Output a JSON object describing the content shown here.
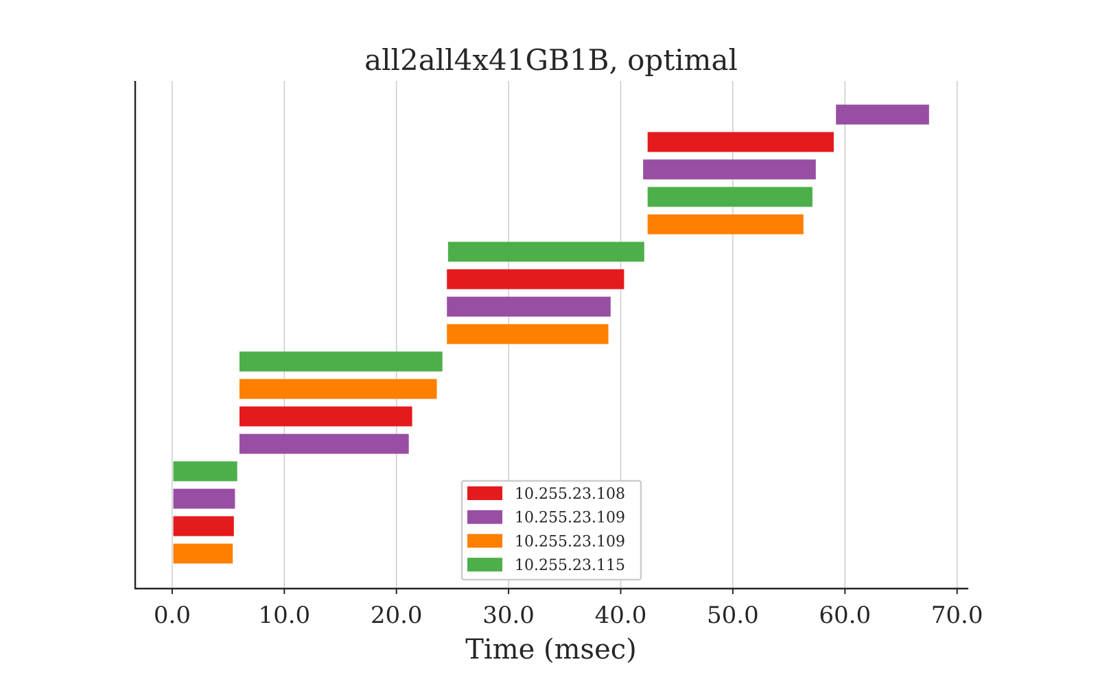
{
  "chart_data": {
    "type": "bar",
    "subtype": "horizontal-timeline",
    "title": "all2all4x41GB1B, optimal",
    "xlabel": "Time (msec)",
    "ylabel": "",
    "xlim": [
      -3.3,
      71.0
    ],
    "xticks": [
      0,
      10,
      20,
      30,
      40,
      50,
      60,
      70
    ],
    "xtick_labels": [
      "0.0",
      "10.0",
      "20.0",
      "30.0",
      "40.0",
      "50.0",
      "60.0",
      "70.0"
    ],
    "grid": "vertical",
    "legend_position": "bottom-center",
    "series": [
      {
        "name": "10.255.23.108",
        "color": "#e41a1c"
      },
      {
        "name": "10.255.23.109",
        "color": "#984ea3"
      },
      {
        "name": "10.255.23.109",
        "color": "#ff7f00"
      },
      {
        "name": "10.255.23.115",
        "color": "#4daf4a"
      }
    ],
    "bars": [
      {
        "series": 2,
        "start": 0.1,
        "end": 5.4
      },
      {
        "series": 0,
        "start": 0.1,
        "end": 5.5
      },
      {
        "series": 1,
        "start": 0.1,
        "end": 5.6
      },
      {
        "series": 3,
        "start": 0.1,
        "end": 5.8
      },
      {
        "series": 1,
        "start": 6.0,
        "end": 21.1
      },
      {
        "series": 0,
        "start": 6.0,
        "end": 21.4
      },
      {
        "series": 2,
        "start": 6.0,
        "end": 23.6
      },
      {
        "series": 3,
        "start": 6.0,
        "end": 24.1
      },
      {
        "series": 2,
        "start": 24.5,
        "end": 38.9
      },
      {
        "series": 1,
        "start": 24.5,
        "end": 39.1
      },
      {
        "series": 0,
        "start": 24.5,
        "end": 40.3
      },
      {
        "series": 3,
        "start": 24.6,
        "end": 42.1
      },
      {
        "series": 2,
        "start": 42.4,
        "end": 56.3
      },
      {
        "series": 3,
        "start": 42.4,
        "end": 57.1
      },
      {
        "series": 1,
        "start": 42.0,
        "end": 57.4
      },
      {
        "series": 0,
        "start": 42.4,
        "end": 59.0
      },
      {
        "series": 1,
        "start": 59.2,
        "end": 67.5
      }
    ]
  }
}
